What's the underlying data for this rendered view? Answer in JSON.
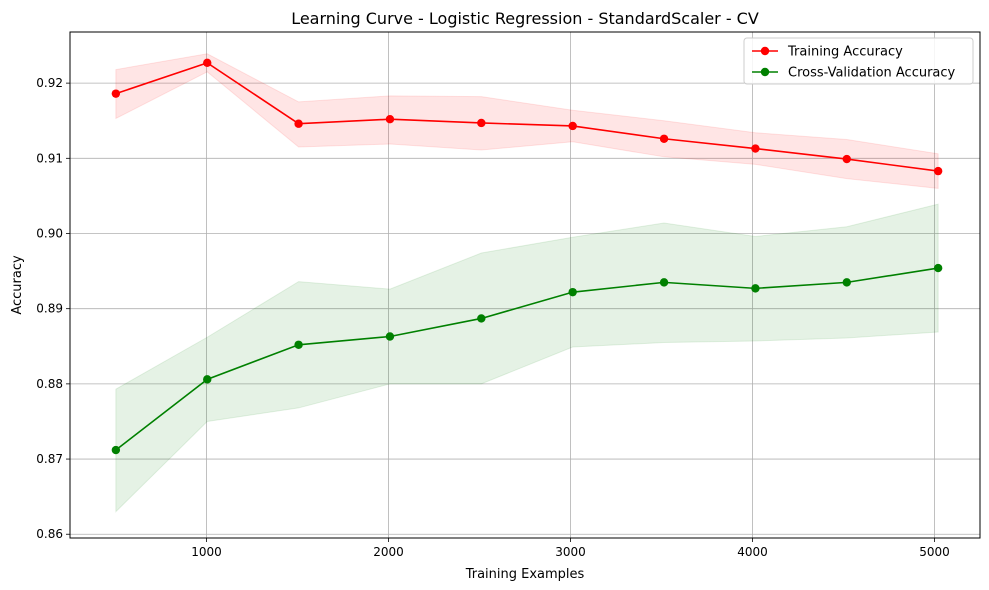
{
  "chart_data": {
    "type": "line",
    "title": "Learning Curve - Logistic Regression - StandardScaler - CV",
    "xlabel": "Training Examples",
    "ylabel": "Accuracy",
    "xlim": [
      250,
      5250
    ],
    "ylim": [
      0.8595,
      0.9268
    ],
    "xticks": [
      1000,
      2000,
      3000,
      4000,
      5000
    ],
    "yticks": [
      0.86,
      0.87,
      0.88,
      0.89,
      0.9,
      0.91,
      0.92
    ],
    "ytick_labels": [
      "0.86",
      "0.87",
      "0.88",
      "0.89",
      "0.90",
      "0.91",
      "0.92"
    ],
    "grid": true,
    "legend_position": "upper-right",
    "x": [
      502,
      1004,
      1506,
      2008,
      2510,
      3012,
      3514,
      4016,
      4518,
      5020
    ],
    "series": [
      {
        "name": "Training Accuracy",
        "color": "#ff0000",
        "values": [
          0.9186,
          0.9227,
          0.9146,
          0.9152,
          0.9147,
          0.9143,
          0.9126,
          0.9113,
          0.9099,
          0.9083
        ],
        "band_lower": [
          0.9153,
          0.9215,
          0.9115,
          0.9119,
          0.9111,
          0.9122,
          0.9102,
          0.9092,
          0.9073,
          0.906
        ],
        "band_upper": [
          0.9218,
          0.9239,
          0.9175,
          0.9183,
          0.9182,
          0.9164,
          0.915,
          0.9134,
          0.9125,
          0.9106
        ],
        "band_color": "#ff0000"
      },
      {
        "name": "Cross-Validation Accuracy",
        "color": "#008000",
        "values": [
          0.8712,
          0.8806,
          0.8852,
          0.8863,
          0.8887,
          0.8922,
          0.8935,
          0.8927,
          0.8935,
          0.8954
        ],
        "band_lower": [
          0.863,
          0.875,
          0.8768,
          0.88,
          0.88,
          0.8849,
          0.8855,
          0.8857,
          0.8861,
          0.8869
        ],
        "band_upper": [
          0.8793,
          0.8862,
          0.8936,
          0.8926,
          0.8974,
          0.8995,
          0.9014,
          0.8996,
          0.9009,
          0.9039
        ],
        "band_color": "#008000"
      }
    ]
  }
}
